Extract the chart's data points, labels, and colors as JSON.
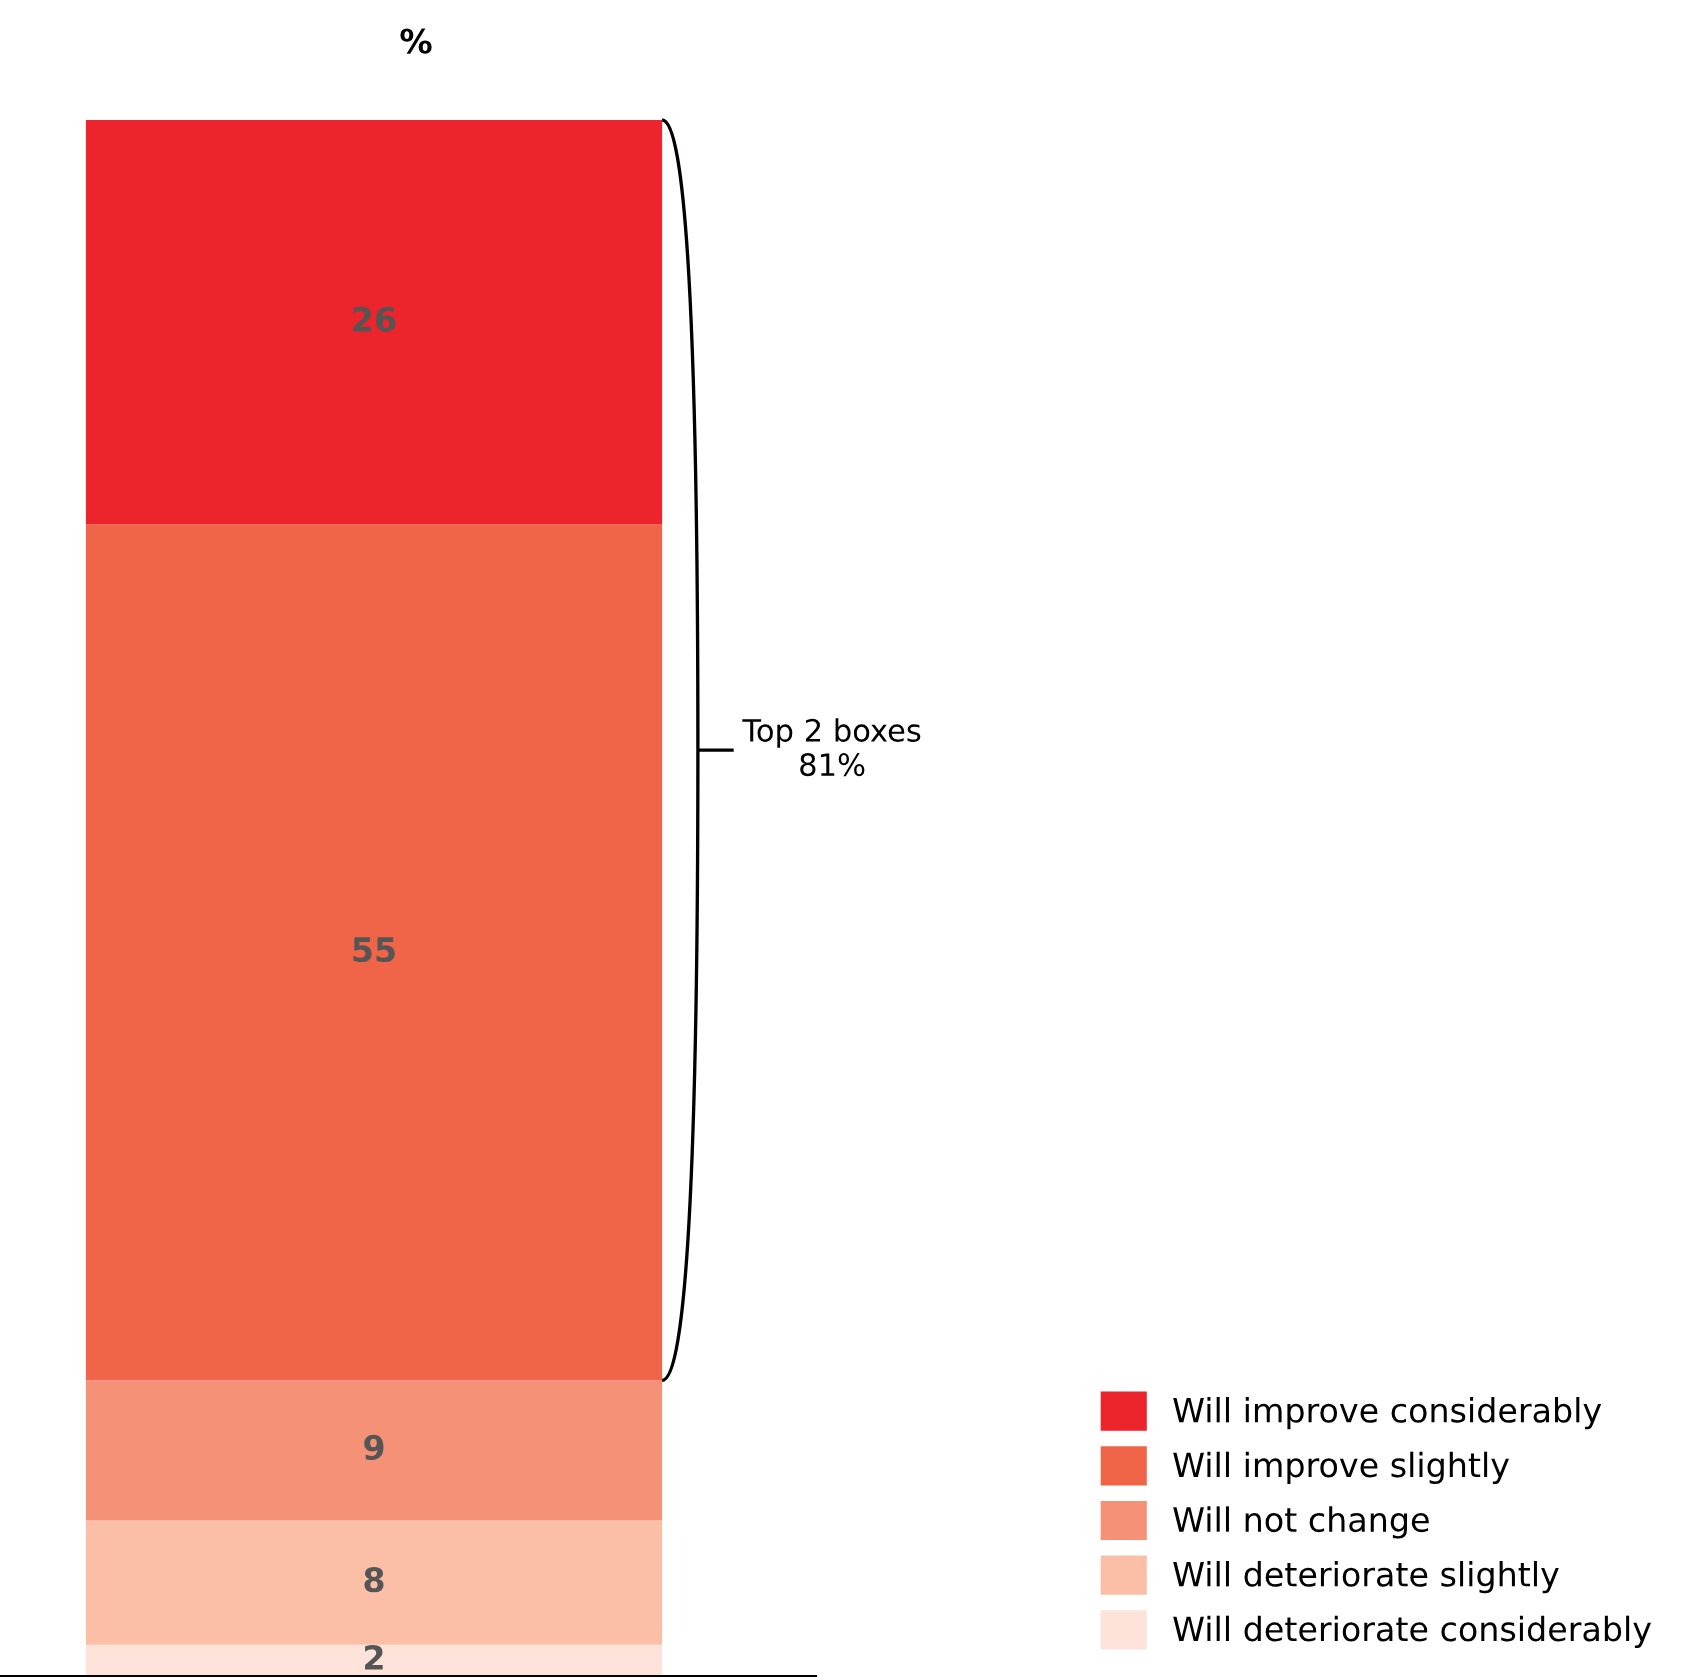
{
  "chart_data": {
    "type": "bar",
    "title": "%",
    "categories": [
      null
    ],
    "stacked": true,
    "data_labels": true,
    "legend": "bottom right",
    "grid": false,
    "series": [
      {
        "name": "Will deteriorate considerably",
        "color": "#fde3d9",
        "values": [
          2
        ]
      },
      {
        "name": "Will deteriorate slightly",
        "color": "#fbbfa7",
        "values": [
          8
        ]
      },
      {
        "name": "Will not change",
        "color": "#f59176",
        "values": [
          9
        ]
      },
      {
        "name": "Will improve slightly",
        "color": "#f06448",
        "values": [
          55
        ]
      },
      {
        "name": "Will improve considerably",
        "color": "#ec242b",
        "values": [
          26
        ]
      }
    ],
    "annotations": [
      "Top 2 boxes\n81%"
    ]
  }
}
